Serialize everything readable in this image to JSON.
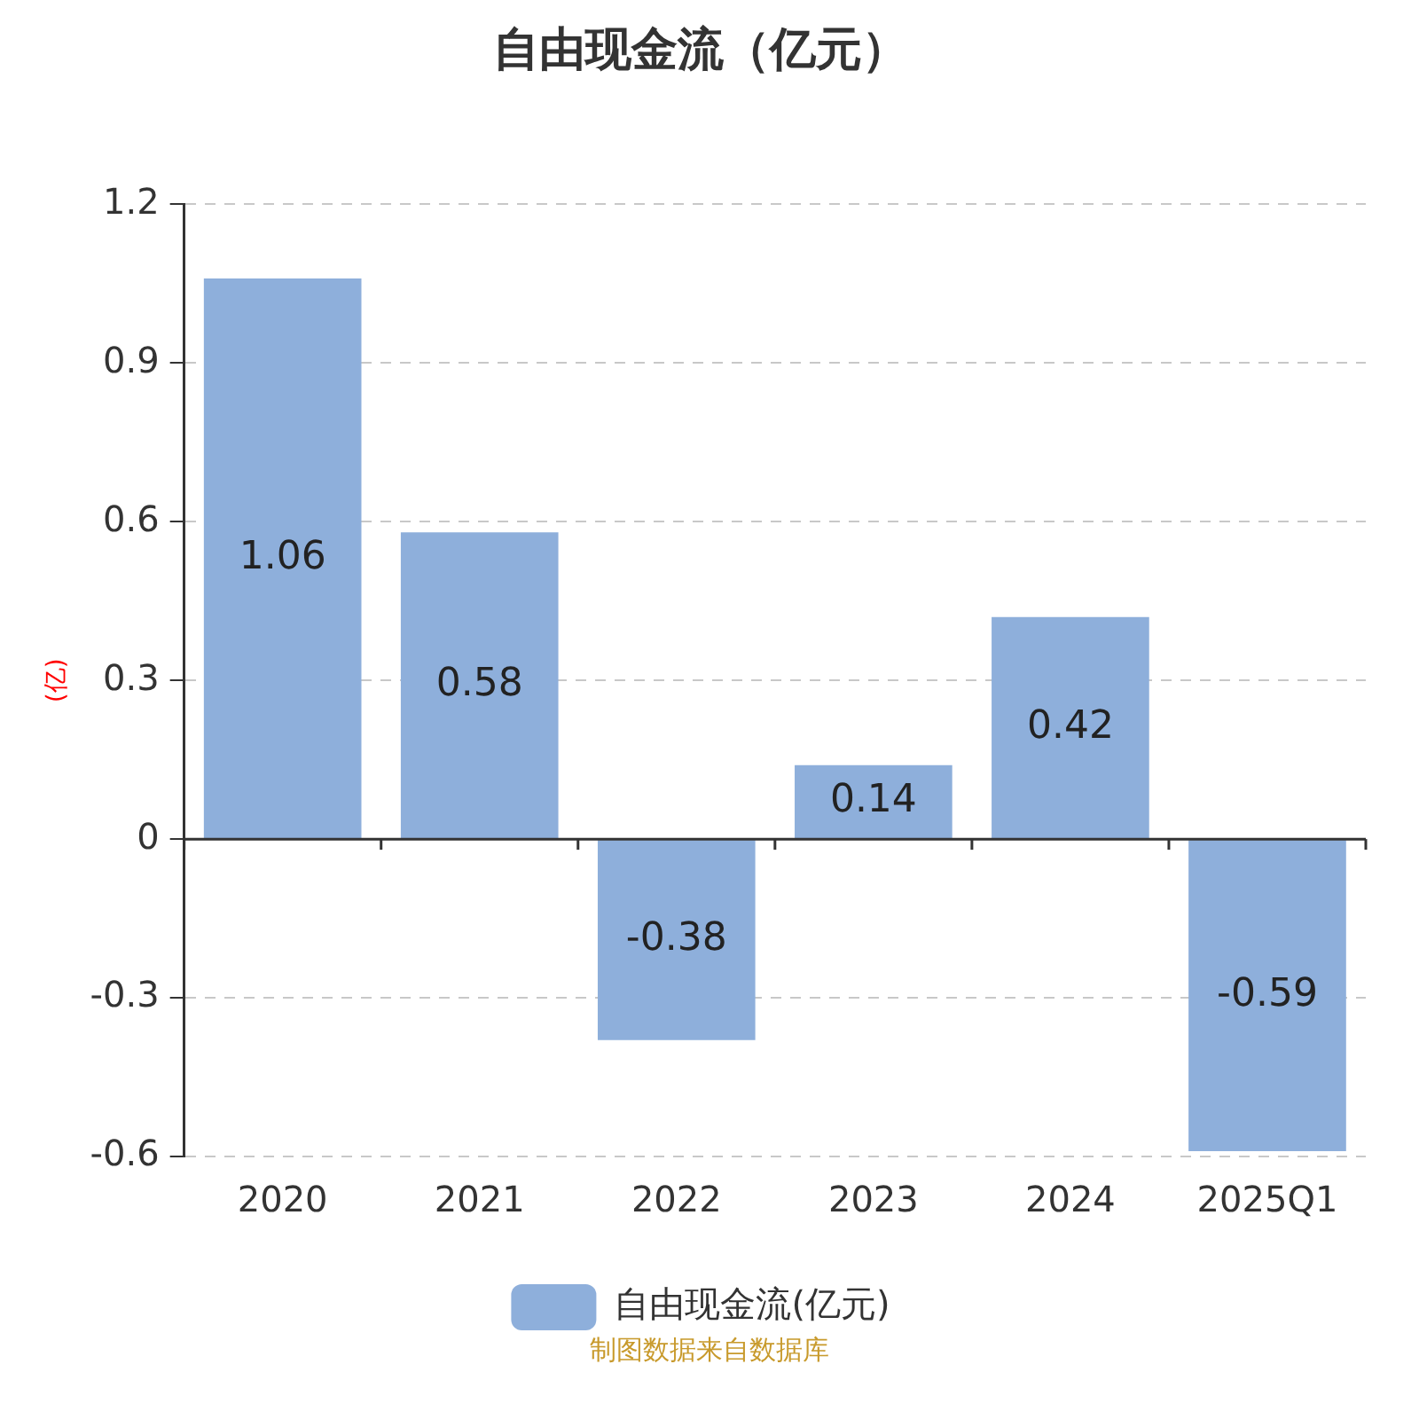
{
  "chart_data": {
    "type": "bar",
    "title": "自由现金流（亿元）",
    "ylabel": "(亿)",
    "categories": [
      "2020",
      "2021",
      "2022",
      "2023",
      "2024",
      "2025Q1"
    ],
    "series": [
      {
        "name": "自由现金流(亿元)",
        "color": "#8eafdb",
        "values": [
          1.06,
          0.58,
          -0.38,
          0.14,
          0.42,
          -0.59
        ]
      }
    ],
    "ylim": [
      -0.6,
      1.2
    ],
    "yticks": [
      -0.6,
      -0.3,
      0,
      0.3,
      0.6,
      0.9,
      1.2
    ],
    "grid": "y",
    "legend": "bottom",
    "data_labels": true,
    "annotations": [
      "制图数据来自数据库"
    ]
  }
}
